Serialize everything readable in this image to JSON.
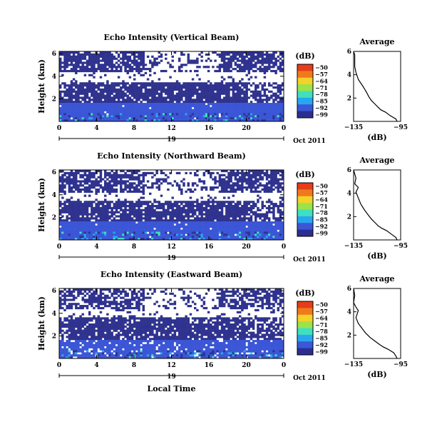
{
  "chart_data": {
    "type": "heatmap",
    "panels": [
      {
        "title": "Echo Intensity (Vertical Beam)",
        "ylabel": "Height (km)",
        "yticks": [
          "2",
          "4",
          "6"
        ],
        "xticks": [
          "0",
          "4",
          "8",
          "12",
          "16",
          "20",
          "0"
        ],
        "xlim": [
          0,
          24
        ],
        "ylim": [
          0,
          6.2
        ],
        "date_day": "19",
        "date_month_year": "Oct 2011",
        "colorbar_unit": "(dB)",
        "colorbar_ticks": [
          "-50",
          "-57",
          "-64",
          "-71",
          "-78",
          "-85",
          "-92",
          "-99"
        ],
        "layers": [
          {
            "h_low": 0.0,
            "h_high": 1.6,
            "coverage": 0.98,
            "value": -92
          },
          {
            "h_low": 1.6,
            "h_high": 3.5,
            "coverage": 0.9,
            "value": -96
          },
          {
            "h_low": 3.5,
            "h_high": 4.3,
            "coverage": 0.1,
            "value": -97
          },
          {
            "h_low": 4.3,
            "h_high": 6.2,
            "coverage": 0.8,
            "value": -97
          }
        ],
        "average_profile": {
          "title": "Average",
          "xlabel": "(dB)",
          "xticks": [
            "-135",
            "-95"
          ],
          "yticks": [
            "2",
            "4",
            "6"
          ],
          "xlim": [
            -135,
            -95
          ],
          "ylim": [
            0,
            6
          ],
          "dB": [
            -98,
            -99,
            -104,
            -108,
            -112,
            -114,
            -117,
            -120,
            -122,
            -124,
            -127,
            -131,
            -133,
            -134,
            -134,
            -134,
            -135
          ],
          "height_km": [
            0.0,
            0.2,
            0.5,
            0.8,
            1.0,
            1.2,
            1.5,
            1.8,
            2.1,
            2.5,
            3.0,
            3.6,
            4.2,
            4.7,
            5.2,
            5.7,
            6.0
          ]
        }
      },
      {
        "title": "Echo Intensity (Northward Beam)",
        "ylabel": "Height (km)",
        "yticks": [
          "2",
          "4",
          "6"
        ],
        "xticks": [
          "0",
          "4",
          "8",
          "12",
          "16",
          "20",
          "0"
        ],
        "xlim": [
          0,
          24
        ],
        "ylim": [
          0,
          6.2
        ],
        "date_day": "19",
        "date_month_year": "Oct 2011",
        "colorbar_unit": "(dB)",
        "colorbar_ticks": [
          "-50",
          "-57",
          "-64",
          "-71",
          "-78",
          "-85",
          "-92",
          "-99"
        ],
        "layers": [
          {
            "h_low": 0.0,
            "h_high": 1.6,
            "coverage": 0.97,
            "value": -92
          },
          {
            "h_low": 1.6,
            "h_high": 3.4,
            "coverage": 0.85,
            "value": -96
          },
          {
            "h_low": 3.4,
            "h_high": 4.2,
            "coverage": 0.1,
            "value": -97
          },
          {
            "h_low": 4.2,
            "h_high": 6.2,
            "coverage": 0.72,
            "value": -97
          }
        ],
        "average_profile": {
          "title": "Average",
          "xlabel": "(dB)",
          "xticks": [
            "-135",
            "-95"
          ],
          "yticks": [
            "2",
            "4",
            "6"
          ],
          "xlim": [
            -135,
            -95
          ],
          "ylim": [
            0,
            6
          ],
          "dB": [
            -98,
            -99,
            -103,
            -107,
            -111,
            -114,
            -117,
            -120,
            -123,
            -126,
            -129,
            -131,
            -133,
            -131,
            -134,
            -133,
            -135
          ],
          "height_km": [
            0.0,
            0.2,
            0.5,
            0.8,
            1.0,
            1.2,
            1.5,
            1.8,
            2.2,
            2.6,
            3.1,
            3.6,
            4.1,
            4.5,
            4.8,
            5.3,
            6.0
          ]
        }
      },
      {
        "title": "Echo Intensity (Eastward Beam)",
        "ylabel": "Height (km)",
        "yticks": [
          "2",
          "4",
          "6"
        ],
        "xticks": [
          "0",
          "4",
          "8",
          "12",
          "16",
          "20",
          "0"
        ],
        "xlim": [
          0,
          24
        ],
        "ylim": [
          0,
          6.2
        ],
        "date_day": "19",
        "date_month_year": "Oct 2011",
        "colorbar_unit": "(dB)",
        "colorbar_ticks": [
          "-50",
          "-57",
          "-64",
          "-71",
          "-78",
          "-85",
          "-92",
          "-99"
        ],
        "layers": [
          {
            "h_low": 0.0,
            "h_high": 1.6,
            "coverage": 0.9,
            "value": -92
          },
          {
            "h_low": 1.6,
            "h_high": 3.6,
            "coverage": 0.85,
            "value": -96
          },
          {
            "h_low": 3.6,
            "h_high": 4.4,
            "coverage": 0.12,
            "value": -97
          },
          {
            "h_low": 4.4,
            "h_high": 6.2,
            "coverage": 0.65,
            "value": -97
          }
        ],
        "average_profile": {
          "title": "Average",
          "xlabel": "(dB)",
          "xticks": [
            "-135",
            "-95"
          ],
          "yticks": [
            "2",
            "4",
            "6"
          ],
          "xlim": [
            -135,
            -95
          ],
          "ylim": [
            0,
            6
          ],
          "dB": [
            -98,
            -99,
            -101,
            -106,
            -110,
            -113,
            -117,
            -121,
            -125,
            -128,
            -131,
            -133,
            -131,
            -133,
            -135,
            -134,
            -135
          ],
          "height_km": [
            0.0,
            0.2,
            0.5,
            0.8,
            1.0,
            1.2,
            1.5,
            1.8,
            2.2,
            2.6,
            3.0,
            3.5,
            4.1,
            4.4,
            4.8,
            5.4,
            6.0
          ]
        }
      }
    ],
    "bottom_xlabel": "Local Time"
  }
}
